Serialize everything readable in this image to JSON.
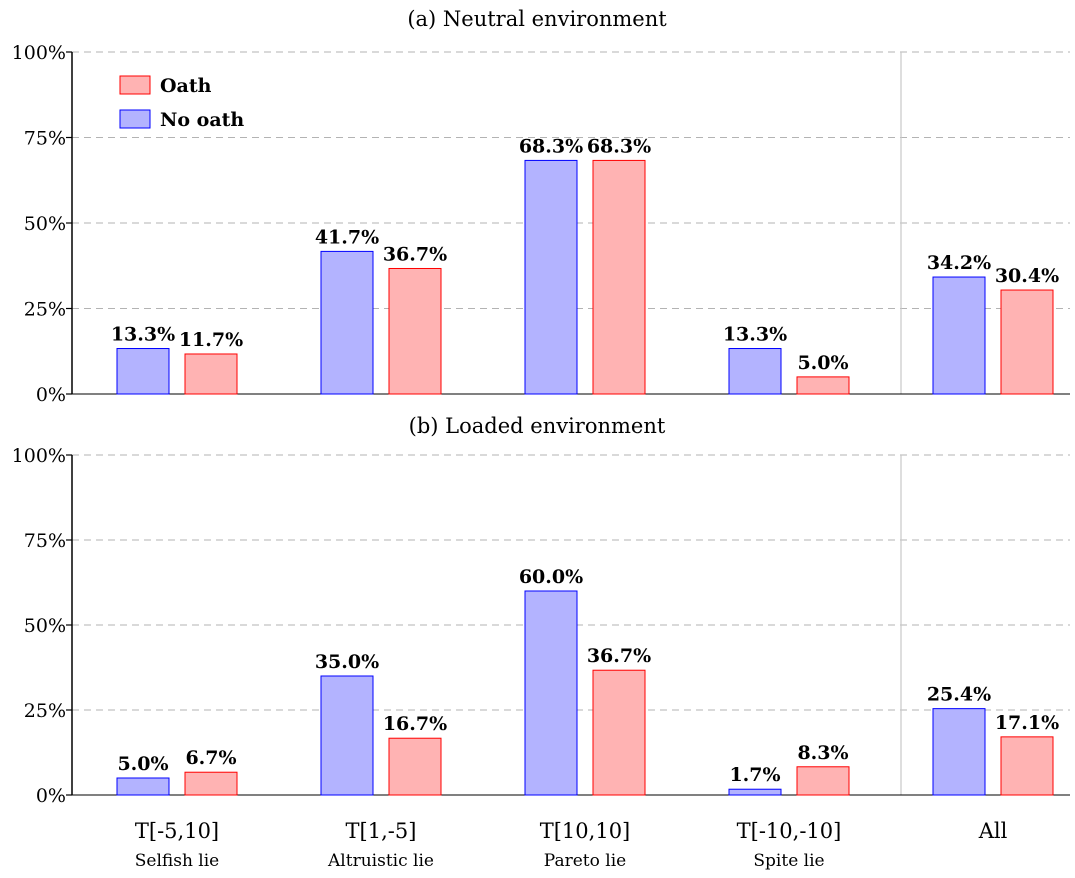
{
  "colors": {
    "no_oath_fill": "#b3b3ff",
    "no_oath_stroke": "#0000ff",
    "oath_fill": "#ffb3b3",
    "oath_stroke": "#ff0000",
    "grid": "#b3b3b3",
    "separator": "#c8c8c8"
  },
  "chart_data": {
    "type": "bar",
    "categories": [
      {
        "code": "T[-5,10]",
        "description": "Selfish lie"
      },
      {
        "code": "T[1,-5]",
        "description": "Altruistic lie"
      },
      {
        "code": "T[10,10]",
        "description": "Pareto lie"
      },
      {
        "code": "T[-10,-10]",
        "description": "Spite lie"
      },
      {
        "code": "All",
        "description": ""
      }
    ],
    "ylim": [
      0,
      100
    ],
    "yticks": [
      "0%",
      "25%",
      "50%",
      "75%",
      "100%"
    ],
    "ytick_values": [
      0,
      25,
      50,
      75,
      100
    ],
    "grid": "horizontal dashed",
    "legend": {
      "placement": "top-left of panel (a)",
      "entries": [
        {
          "name": "Oath",
          "series": "oath"
        },
        {
          "name": "No oath",
          "series": "no_oath"
        }
      ]
    },
    "panels": [
      {
        "title": "(a) Neutral environment",
        "series": [
          {
            "name": "No oath",
            "key": "no_oath",
            "values": [
              13.3,
              41.7,
              68.3,
              13.3,
              34.2
            ],
            "labels": [
              "13.3%",
              "41.7%",
              "68.3%",
              "13.3%",
              "34.2%"
            ]
          },
          {
            "name": "Oath",
            "key": "oath",
            "values": [
              11.7,
              36.7,
              68.3,
              5.0,
              30.4
            ],
            "labels": [
              "11.7%",
              "36.7%",
              "68.3%",
              "5.0%",
              "30.4%"
            ]
          }
        ]
      },
      {
        "title": "(b) Loaded environment",
        "series": [
          {
            "name": "No oath",
            "key": "no_oath",
            "values": [
              5.0,
              35.0,
              60.0,
              1.7,
              25.4
            ],
            "labels": [
              "5.0%",
              "35.0%",
              "60.0%",
              "1.7%",
              "25.4%"
            ]
          },
          {
            "name": "Oath",
            "key": "oath",
            "values": [
              6.7,
              16.7,
              36.7,
              8.3,
              17.1
            ],
            "labels": [
              "6.7%",
              "16.7%",
              "36.7%",
              "8.3%",
              "17.1%"
            ]
          }
        ]
      }
    ]
  }
}
